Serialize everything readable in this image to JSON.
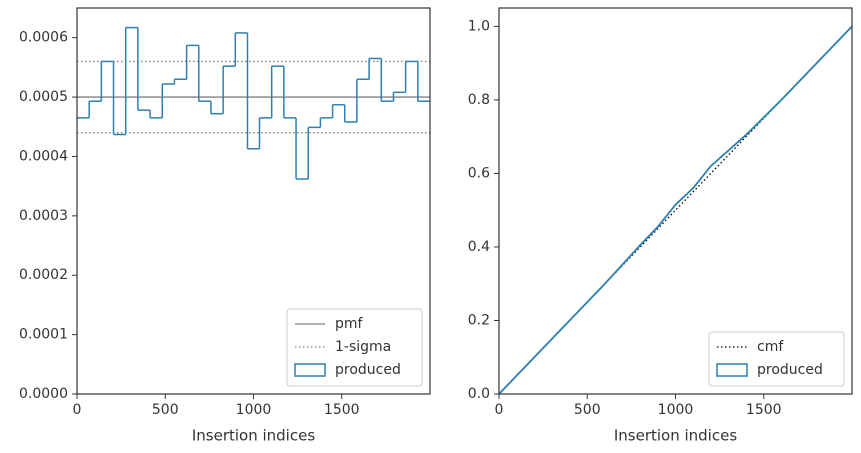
{
  "chart_data": [
    {
      "type": "histogram",
      "x_label": "Insertion indices",
      "xlim": [
        0,
        2000
      ],
      "xticks": [
        0,
        500,
        1000,
        1500
      ],
      "ylim": [
        0,
        0.00065
      ],
      "yticks": [
        {
          "value": 0,
          "label": "0.0000"
        },
        0.0001,
        0.0002,
        0.0003,
        0.0004,
        0.0005,
        0.0006
      ],
      "bins": [
        0,
        69,
        138,
        207,
        276,
        345,
        414,
        483,
        552,
        621,
        690,
        759,
        828,
        897,
        966,
        1034,
        1103,
        1172,
        1241,
        1310,
        1379,
        1448,
        1517,
        1586,
        1655,
        1724,
        1793,
        1862,
        1931,
        2000
      ],
      "reference_lines": [
        {
          "name": "pmf",
          "values": [
            0.0005
          ],
          "color": "#808080",
          "dash": "solid"
        },
        {
          "name": "1-sigma",
          "values": [
            0.00044,
            0.00056
          ],
          "color": "#808080",
          "dash": "dotted"
        }
      ],
      "series": [
        {
          "name": "produced",
          "color": "#2e7fb0",
          "style": "step",
          "values": [
            0.000465,
            0.000493,
            0.00056,
            0.000437,
            0.000617,
            0.000478,
            0.000465,
            0.000522,
            0.00053,
            0.000587,
            0.000493,
            0.000472,
            0.000552,
            0.000608,
            0.000413,
            0.000465,
            0.000552,
            0.000465,
            0.000362,
            0.000449,
            0.000465,
            0.000487,
            0.000458,
            0.00053,
            0.000565,
            0.000493,
            0.000508,
            0.00056,
            0.000493
          ]
        }
      ],
      "legend": "lower right"
    },
    {
      "type": "line",
      "x_label": "Insertion indices",
      "xlim": [
        0,
        2000
      ],
      "xticks": [
        0,
        500,
        1000,
        1500
      ],
      "ylim": [
        0,
        1.05
      ],
      "yticks": [
        {
          "value": 0,
          "label": "0.0"
        },
        0.2,
        0.4,
        0.6,
        0.8,
        {
          "value": 1,
          "label": "1.0"
        }
      ],
      "series": [
        {
          "name": "cmf",
          "color": "#000000",
          "dash": "dotted",
          "x": [
            0,
            2000
          ],
          "values": [
            0,
            1
          ]
        },
        {
          "name": "produced",
          "color": "#2e7fb0",
          "style": "step",
          "x": [
            0,
            200,
            400,
            600,
            800,
            900,
            1000,
            1100,
            1200,
            1400,
            1600,
            1800,
            2000
          ],
          "values": [
            0,
            0.1,
            0.2,
            0.3,
            0.405,
            0.455,
            0.515,
            0.56,
            0.62,
            0.705,
            0.8,
            0.9,
            1.0
          ]
        }
      ],
      "legend": "lower right"
    }
  ]
}
